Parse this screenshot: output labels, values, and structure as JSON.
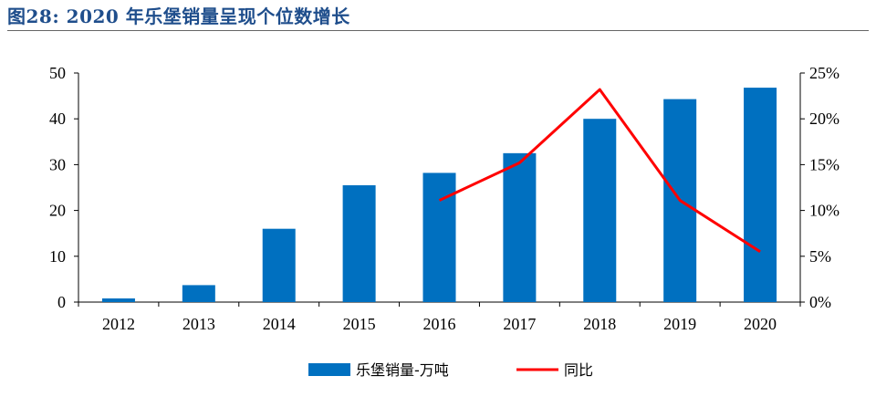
{
  "title": "图28:  2020 年乐堡销量呈现个位数增长",
  "chart_data": {
    "type": "bar",
    "categories": [
      "2012",
      "2013",
      "2014",
      "2015",
      "2016",
      "2017",
      "2018",
      "2019",
      "2020"
    ],
    "series": [
      {
        "name": "乐堡销量-万吨",
        "type": "bar",
        "axis": "left",
        "color": "#0070c0",
        "values": [
          0.8,
          3.7,
          16.0,
          25.5,
          28.2,
          32.5,
          40.0,
          44.3,
          46.8
        ]
      },
      {
        "name": "同比",
        "type": "line",
        "axis": "right",
        "color": "#ff0000",
        "values": [
          null,
          null,
          null,
          null,
          0.111,
          0.152,
          0.232,
          0.111,
          0.055
        ]
      }
    ],
    "y_left": {
      "min": 0,
      "max": 50,
      "ticks": [
        "0",
        "10",
        "20",
        "30",
        "40",
        "50"
      ]
    },
    "y_right": {
      "min": 0,
      "max": 0.25,
      "ticks": [
        "0%",
        "5%",
        "10%",
        "15%",
        "20%",
        "25%"
      ]
    },
    "legend_position": "bottom",
    "grid": false
  }
}
